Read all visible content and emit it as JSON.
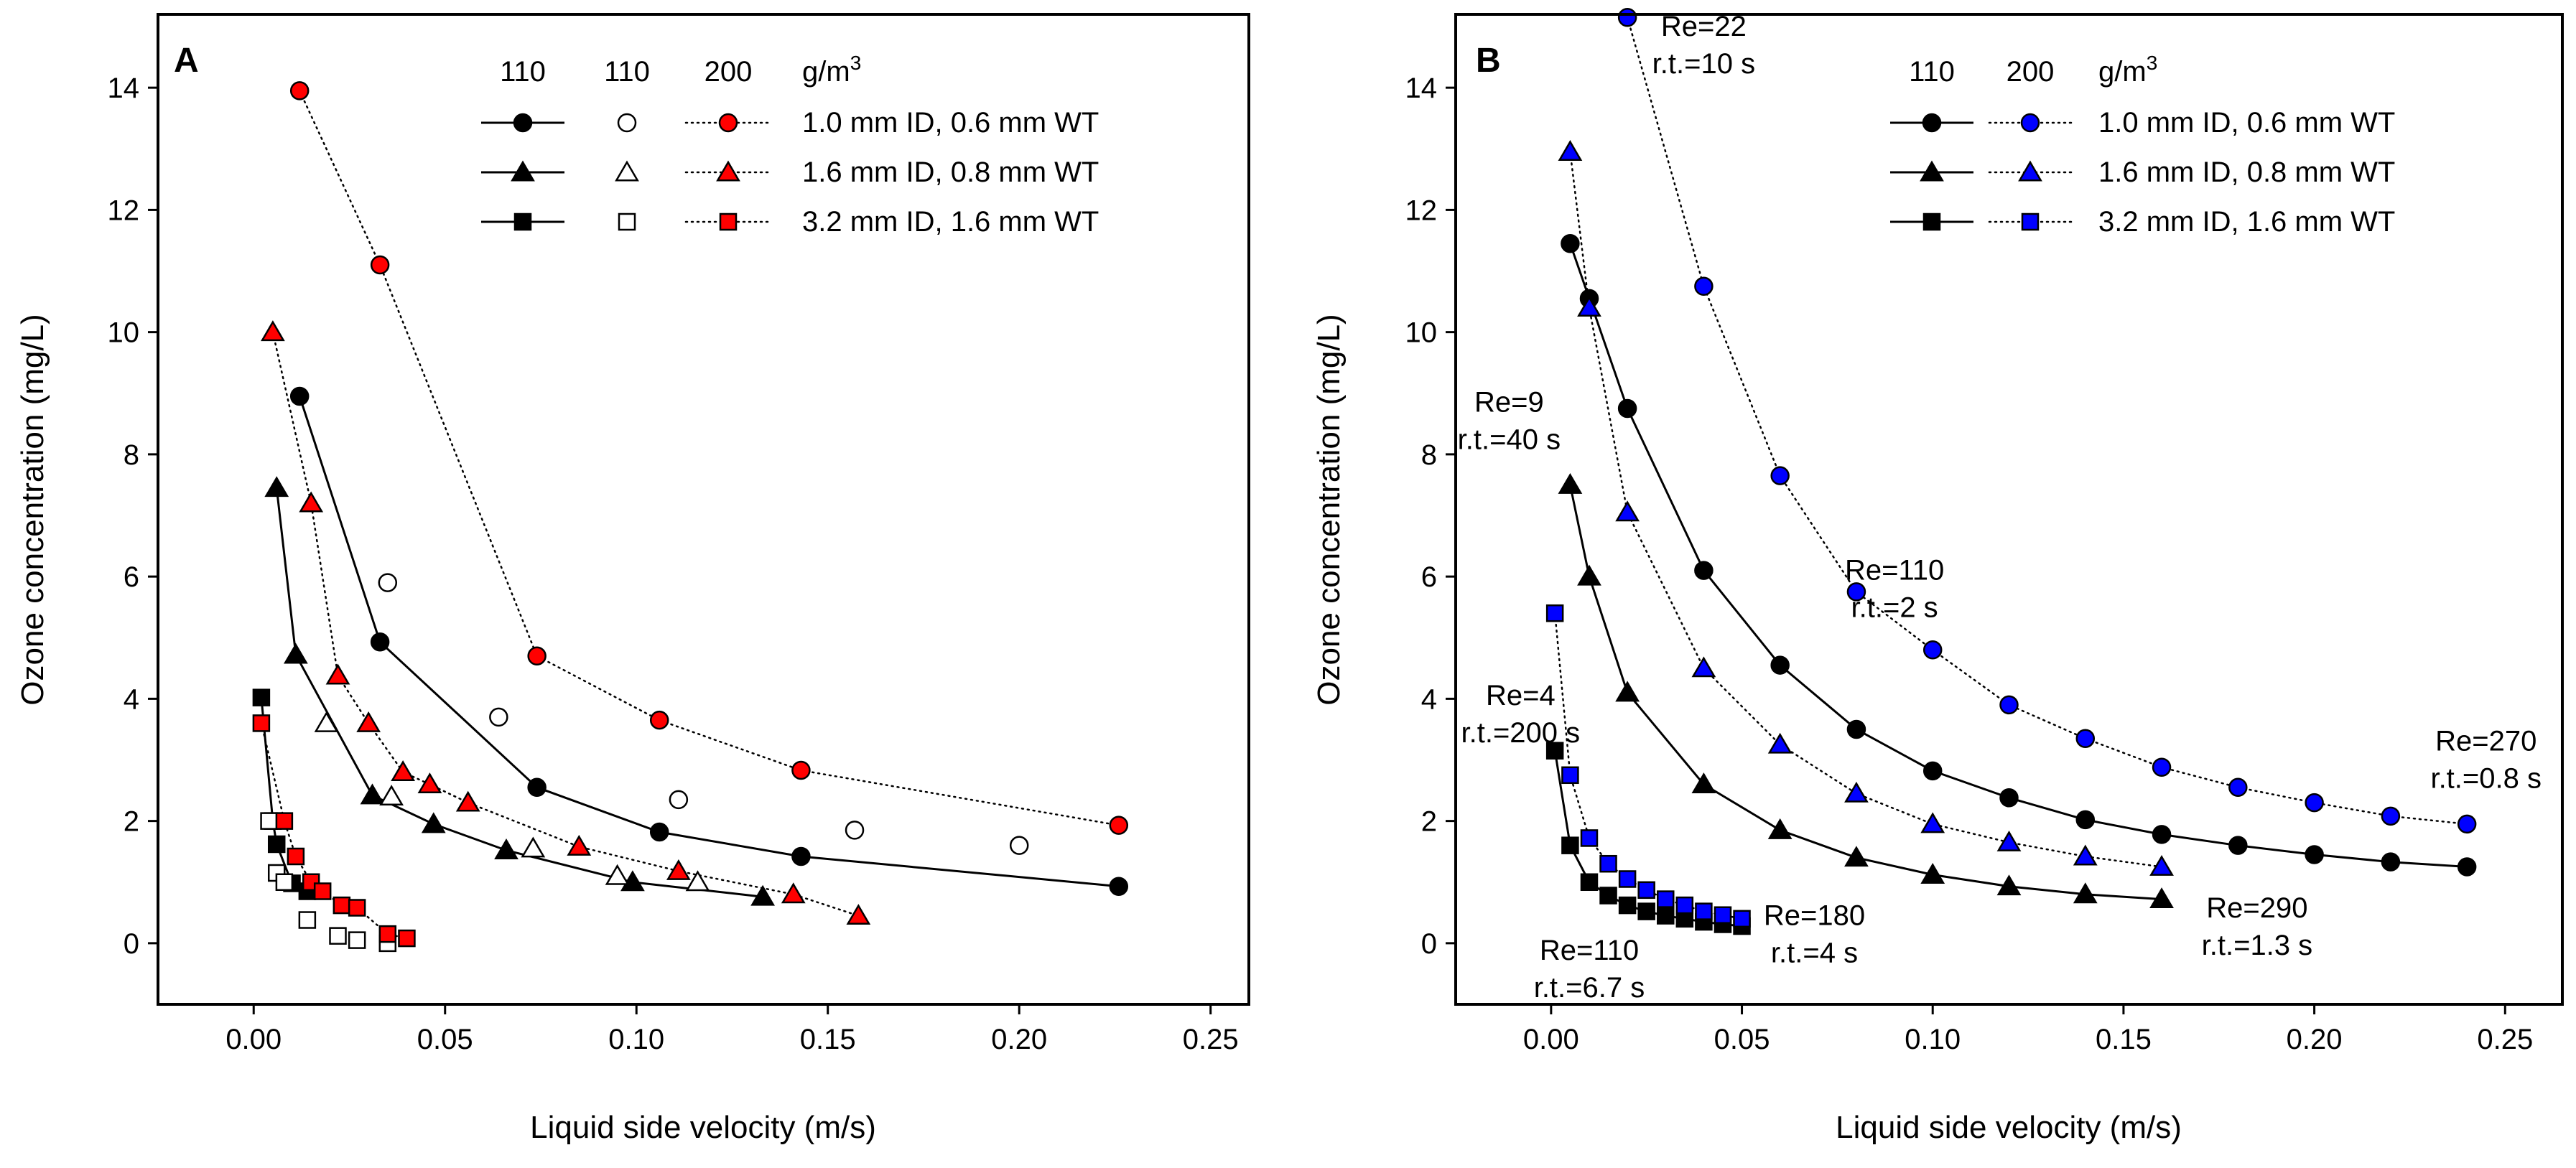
{
  "colors": {
    "black": "#000000",
    "red": "#ff0000",
    "blue": "#0000ff",
    "white": "#ffffff"
  },
  "chart_data": [
    {
      "panel": "A",
      "type": "line",
      "xlabel": "Liquid side velocity (m/s)",
      "ylabel": "Ozone concentration (mg/L)",
      "xlim": [
        -0.025,
        0.26
      ],
      "ylim": [
        -1,
        15.2
      ],
      "xticks": [
        "0.00",
        "0.05",
        "0.10",
        "0.15",
        "0.20",
        "0.25"
      ],
      "xtick_values": [
        0,
        0.05,
        0.1,
        0.15,
        0.2,
        0.25
      ],
      "yticks": [
        "0",
        "2",
        "4",
        "6",
        "8",
        "10",
        "12",
        "14"
      ],
      "ytick_values": [
        0,
        2,
        4,
        6,
        8,
        10,
        12,
        14
      ],
      "legend": {
        "headers": [
          "110",
          "110",
          "200"
        ],
        "unit": "g/m",
        "unit_sup": "3",
        "rows": [
          "1.0 mm ID, 0.6 mm WT",
          "1.6 mm ID, 0.8 mm WT",
          "3.2 mm ID, 1.6 mm WT"
        ],
        "columns": [
          {
            "fill": "#000000",
            "line": "solid"
          },
          {
            "fill": "#ffffff",
            "line": "none"
          },
          {
            "fill": "#ff0000",
            "line": "dotted"
          }
        ]
      },
      "series": [
        {
          "name": "110 g/m3 - 1.0 mm ID, 0.6 mm WT",
          "marker": "circle",
          "fill": "#000000",
          "line": "solid",
          "x": [
            0.012,
            0.033,
            0.074,
            0.106,
            0.143,
            0.226
          ],
          "y": [
            8.95,
            4.93,
            2.55,
            1.82,
            1.42,
            0.93
          ]
        },
        {
          "name": "110 g/m3 - 1.6 mm ID, 0.8 mm WT",
          "marker": "triangle",
          "fill": "#000000",
          "line": "solid",
          "x": [
            0.006,
            0.011,
            0.031,
            0.047,
            0.066,
            0.099,
            0.133
          ],
          "y": [
            7.45,
            4.72,
            2.42,
            1.95,
            1.52,
            1.0,
            0.76
          ]
        },
        {
          "name": "110 g/m3 - 3.2 mm ID, 1.6 mm WT",
          "marker": "square",
          "fill": "#000000",
          "line": "solid",
          "x": [
            0.002,
            0.005,
            0.006,
            0.01,
            0.014
          ],
          "y": [
            4.02,
            2.0,
            1.62,
            0.98,
            0.85
          ]
        },
        {
          "name": "110 g/m3 (open) - 1.0 mm ID, 0.6 mm WT",
          "marker": "circle",
          "fill": "#ffffff",
          "line": "none",
          "x": [
            0.035,
            0.064,
            0.111,
            0.157,
            0.2
          ],
          "y": [
            5.9,
            3.7,
            2.35,
            1.85,
            1.6
          ]
        },
        {
          "name": "110 g/m3 (open) - 1.6 mm ID, 0.8 mm WT",
          "marker": "triangle",
          "fill": "#ffffff",
          "line": "none",
          "x": [
            0.019,
            0.036,
            0.073,
            0.095,
            0.116
          ],
          "y": [
            3.6,
            2.4,
            1.55,
            1.1,
            1.0
          ]
        },
        {
          "name": "110 g/m3 (open) - 3.2 mm ID, 1.6 mm WT",
          "marker": "square",
          "fill": "#ffffff",
          "line": "none",
          "x": [
            0.004,
            0.006,
            0.008,
            0.014,
            0.022,
            0.027,
            0.035
          ],
          "y": [
            2.0,
            1.15,
            1.0,
            0.38,
            0.12,
            0.05,
            0.0
          ]
        },
        {
          "name": "200 g/m3 - 1.0 mm ID, 0.6 mm WT",
          "marker": "circle",
          "fill": "#ff0000",
          "line": "dotted",
          "x": [
            0.012,
            0.033,
            0.074,
            0.106,
            0.143,
            0.226
          ],
          "y": [
            13.95,
            11.1,
            4.7,
            3.65,
            2.83,
            1.93
          ]
        },
        {
          "name": "200 g/m3 - 1.6 mm ID, 0.8 mm WT",
          "marker": "triangle",
          "fill": "#ff0000",
          "line": "dotted",
          "x": [
            0.005,
            0.015,
            0.022,
            0.03,
            0.039,
            0.046,
            0.056,
            0.085,
            0.111,
            0.141,
            0.158
          ],
          "y": [
            10.0,
            7.2,
            4.38,
            3.6,
            2.8,
            2.6,
            2.3,
            1.58,
            1.18,
            0.8,
            0.45
          ]
        },
        {
          "name": "200 g/m3 - 3.2 mm ID, 1.6 mm WT",
          "marker": "square",
          "fill": "#ff0000",
          "line": "dotted",
          "x": [
            0.002,
            0.008,
            0.011,
            0.015,
            0.018,
            0.023,
            0.027,
            0.035,
            0.04
          ],
          "y": [
            3.6,
            2.0,
            1.42,
            1.0,
            0.85,
            0.62,
            0.58,
            0.15,
            0.08
          ]
        }
      ]
    },
    {
      "panel": "B",
      "type": "line",
      "xlabel": "Liquid side velocity (m/s)",
      "ylabel": "Ozone concentration (mg/L)",
      "xlim": [
        -0.025,
        0.265
      ],
      "ylim": [
        -1,
        15.2
      ],
      "xticks": [
        "0.00",
        "0.05",
        "0.10",
        "0.15",
        "0.20",
        "0.25"
      ],
      "xtick_values": [
        0,
        0.05,
        0.1,
        0.15,
        0.2,
        0.25
      ],
      "yticks": [
        "0",
        "2",
        "4",
        "6",
        "8",
        "10",
        "12",
        "14"
      ],
      "ytick_values": [
        0,
        2,
        4,
        6,
        8,
        10,
        12,
        14
      ],
      "legend": {
        "headers": [
          "110",
          "200"
        ],
        "unit": "g/m",
        "unit_sup": "3",
        "rows": [
          "1.0 mm ID, 0.6 mm WT",
          "1.6 mm ID, 0.8 mm WT",
          "3.2 mm ID, 1.6 mm WT"
        ],
        "columns": [
          {
            "fill": "#000000",
            "line": "solid"
          },
          {
            "fill": "#0000ff",
            "line": "dotted"
          }
        ]
      },
      "series": [
        {
          "name": "110 g/m3 - 1.0 mm ID, 0.6 mm WT",
          "marker": "circle",
          "fill": "#000000",
          "line": "solid",
          "x": [
            0.005,
            0.01,
            0.02,
            0.04,
            0.06,
            0.08,
            0.1,
            0.12,
            0.14,
            0.16,
            0.18,
            0.2,
            0.22,
            0.24
          ],
          "y": [
            11.45,
            10.55,
            8.75,
            6.1,
            4.55,
            3.5,
            2.82,
            2.38,
            2.02,
            1.78,
            1.6,
            1.45,
            1.33,
            1.25
          ]
        },
        {
          "name": "110 g/m3 - 1.6 mm ID, 0.8 mm WT",
          "marker": "triangle",
          "fill": "#000000",
          "line": "solid",
          "x": [
            0.005,
            0.01,
            0.02,
            0.04,
            0.06,
            0.08,
            0.1,
            0.12,
            0.14,
            0.16
          ],
          "y": [
            7.5,
            6.0,
            4.1,
            2.6,
            1.85,
            1.4,
            1.12,
            0.93,
            0.8,
            0.72
          ]
        },
        {
          "name": "110 g/m3 - 3.2 mm ID, 1.6 mm WT",
          "marker": "square",
          "fill": "#000000",
          "line": "solid",
          "x": [
            0.001,
            0.005,
            0.01,
            0.015,
            0.02,
            0.025,
            0.03,
            0.035,
            0.04,
            0.045,
            0.05
          ],
          "y": [
            3.15,
            1.6,
            1.0,
            0.78,
            0.62,
            0.52,
            0.45,
            0.4,
            0.35,
            0.31,
            0.28
          ]
        },
        {
          "name": "200 g/m3 - 1.0 mm ID, 0.6 mm WT",
          "marker": "circle",
          "fill": "#0000ff",
          "line": "dotted",
          "x": [
            0.02,
            0.04,
            0.06,
            0.08,
            0.1,
            0.12,
            0.14,
            0.16,
            0.18,
            0.2,
            0.22,
            0.24
          ],
          "y": [
            15.15,
            10.75,
            7.65,
            5.75,
            4.8,
            3.9,
            3.35,
            2.88,
            2.55,
            2.3,
            2.08,
            1.95
          ]
        },
        {
          "name": "200 g/m3 - 1.6 mm ID, 0.8 mm WT",
          "marker": "triangle",
          "fill": "#0000ff",
          "line": "dotted",
          "x": [
            0.005,
            0.01,
            0.02,
            0.04,
            0.06,
            0.08,
            0.1,
            0.12,
            0.14,
            0.16
          ],
          "y": [
            12.95,
            10.4,
            7.05,
            4.5,
            3.25,
            2.45,
            1.95,
            1.65,
            1.42,
            1.25
          ]
        },
        {
          "name": "200 g/m3 - 3.2 mm ID, 1.6 mm WT",
          "marker": "square",
          "fill": "#0000ff",
          "line": "dotted",
          "x": [
            0.001,
            0.005,
            0.01,
            0.015,
            0.02,
            0.025,
            0.03,
            0.035,
            0.04,
            0.045,
            0.05
          ],
          "y": [
            5.4,
            2.75,
            1.72,
            1.3,
            1.05,
            0.87,
            0.72,
            0.62,
            0.52,
            0.46,
            0.4
          ]
        }
      ],
      "annotations": [
        {
          "lines": [
            "Re=22",
            "r.t.=10 s"
          ],
          "x": 0.04,
          "y": 14.85
        },
        {
          "lines": [
            "Re=9",
            "r.t.=40 s"
          ],
          "x": -0.011,
          "y": 8.7
        },
        {
          "lines": [
            "Re=110",
            "r.t.=2 s"
          ],
          "x": 0.09,
          "y": 5.95
        },
        {
          "lines": [
            "Re=4",
            "r.t.=200 s"
          ],
          "x": -0.008,
          "y": 3.9
        },
        {
          "lines": [
            "Re=270",
            "r.t.=0.8 s"
          ],
          "x": 0.245,
          "y": 3.15
        },
        {
          "lines": [
            "Re=290",
            "r.t.=1.3 s"
          ],
          "x": 0.185,
          "y": 0.42
        },
        {
          "lines": [
            "Re=180",
            "r.t.=4 s"
          ],
          "x": 0.069,
          "y": 0.3
        },
        {
          "lines": [
            "Re=110",
            "r.t.=6.7 s"
          ],
          "x": 0.01,
          "y": -0.27
        }
      ]
    }
  ],
  "panel_labels": [
    "A",
    "B"
  ]
}
